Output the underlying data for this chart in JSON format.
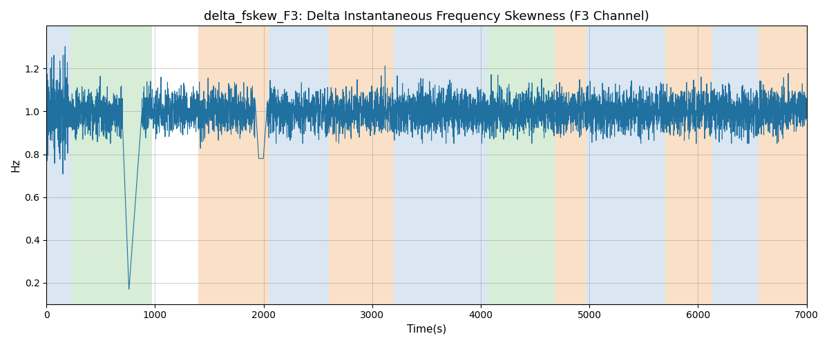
{
  "title": "delta_fskew_F3: Delta Instantaneous Frequency Skewness (F3 Channel)",
  "xlabel": "Time(s)",
  "ylabel": "Hz",
  "xlim": [
    0,
    7000
  ],
  "ylim": [
    0.1,
    1.4
  ],
  "yticks": [
    0.2,
    0.4,
    0.6,
    0.8,
    1.0,
    1.2
  ],
  "xticks": [
    0,
    1000,
    2000,
    3000,
    4000,
    5000,
    6000,
    7000
  ],
  "line_color": "#2070a0",
  "line_width": 0.8,
  "background_bands": [
    {
      "xmin": 0,
      "xmax": 230,
      "color": "#aec8e0",
      "alpha": 0.45
    },
    {
      "xmin": 230,
      "xmax": 970,
      "color": "#a8d8a8",
      "alpha": 0.45
    },
    {
      "xmin": 970,
      "xmax": 1400,
      "color": "#ffffff",
      "alpha": 0.0
    },
    {
      "xmin": 1400,
      "xmax": 2050,
      "color": "#f5c89a",
      "alpha": 0.55
    },
    {
      "xmin": 2050,
      "xmax": 2600,
      "color": "#aec8e0",
      "alpha": 0.45
    },
    {
      "xmin": 2600,
      "xmax": 3200,
      "color": "#f5c89a",
      "alpha": 0.55
    },
    {
      "xmin": 3200,
      "xmax": 4030,
      "color": "#aec8e0",
      "alpha": 0.45
    },
    {
      "xmin": 4030,
      "xmax": 4060,
      "color": "#aec8e0",
      "alpha": 0.45
    },
    {
      "xmin": 4060,
      "xmax": 4680,
      "color": "#a8d8a8",
      "alpha": 0.45
    },
    {
      "xmin": 4680,
      "xmax": 4970,
      "color": "#f5c89a",
      "alpha": 0.55
    },
    {
      "xmin": 4970,
      "xmax": 5700,
      "color": "#aec8e0",
      "alpha": 0.45
    },
    {
      "xmin": 5700,
      "xmax": 6130,
      "color": "#f5c89a",
      "alpha": 0.55
    },
    {
      "xmin": 6130,
      "xmax": 6560,
      "color": "#aec8e0",
      "alpha": 0.45
    },
    {
      "xmin": 6560,
      "xmax": 7000,
      "color": "#f5c89a",
      "alpha": 0.55
    }
  ],
  "title_fontsize": 13,
  "label_fontsize": 11
}
